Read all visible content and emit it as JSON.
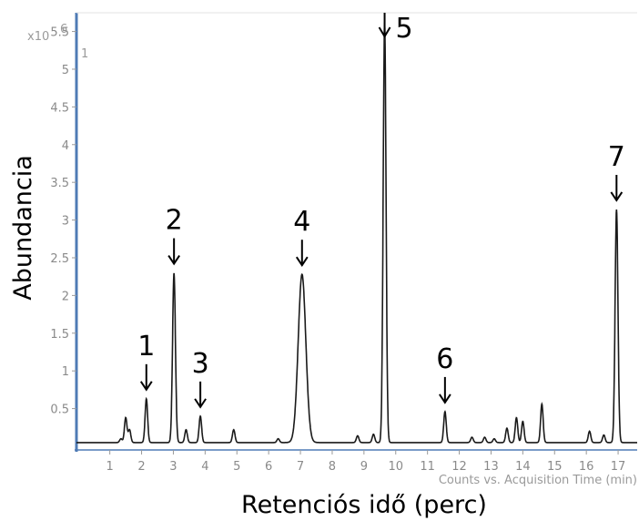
{
  "chart_data": {
    "type": "line",
    "ylabel": "Abundancia",
    "xlabel": "Retenciós idő (perc)",
    "x_axis_caption": "Counts vs. Acquisition Time (min)",
    "y_scale_label": "x10",
    "y_scale_exponent": "6",
    "panel_index": "1",
    "xlim": [
      -0.05,
      17.6
    ],
    "ylim": [
      0,
      5.7
    ],
    "x_ticks": [
      1,
      2,
      3,
      4,
      5,
      6,
      7,
      8,
      9,
      10,
      11,
      12,
      13,
      14,
      15,
      16,
      17
    ],
    "y_ticks": [
      0.5,
      1,
      1.5,
      2,
      2.5,
      3,
      3.5,
      4,
      4.5,
      5,
      5.5
    ],
    "baseline": 0.05,
    "peaks": [
      {
        "x": 1.35,
        "y": 0.1
      },
      {
        "x": 1.5,
        "y": 0.38
      },
      {
        "x": 1.62,
        "y": 0.22
      },
      {
        "x": 2.15,
        "y": 0.63
      },
      {
        "x": 3.02,
        "y": 2.3
      },
      {
        "x": 3.4,
        "y": 0.22
      },
      {
        "x": 3.85,
        "y": 0.4
      },
      {
        "x": 4.9,
        "y": 0.22
      },
      {
        "x": 6.3,
        "y": 0.1
      },
      {
        "x": 7.05,
        "y": 2.28
      },
      {
        "x": 8.8,
        "y": 0.14
      },
      {
        "x": 9.3,
        "y": 0.16
      },
      {
        "x": 9.65,
        "y": 5.62
      },
      {
        "x": 11.55,
        "y": 0.46
      },
      {
        "x": 12.4,
        "y": 0.12
      },
      {
        "x": 12.8,
        "y": 0.12
      },
      {
        "x": 13.1,
        "y": 0.1
      },
      {
        "x": 13.5,
        "y": 0.24
      },
      {
        "x": 13.8,
        "y": 0.38
      },
      {
        "x": 14.0,
        "y": 0.33
      },
      {
        "x": 14.6,
        "y": 0.56
      },
      {
        "x": 16.1,
        "y": 0.2
      },
      {
        "x": 16.55,
        "y": 0.15
      },
      {
        "x": 16.95,
        "y": 3.14
      }
    ],
    "annotations": [
      {
        "label": "1",
        "x": 2.15,
        "y": 0.63
      },
      {
        "label": "2",
        "x": 3.02,
        "y": 2.3
      },
      {
        "label": "3",
        "x": 3.85,
        "y": 0.4
      },
      {
        "label": "4",
        "x": 7.05,
        "y": 2.28
      },
      {
        "label": "5",
        "x": 9.65,
        "y": 5.62
      },
      {
        "label": "6",
        "x": 11.55,
        "y": 0.46
      },
      {
        "label": "7",
        "x": 16.95,
        "y": 3.14
      }
    ],
    "colors": {
      "line": "#1a1a1a",
      "axis": "#4f7bb5",
      "tick_text": "#8a8a8a",
      "annotation": "#000000"
    }
  }
}
